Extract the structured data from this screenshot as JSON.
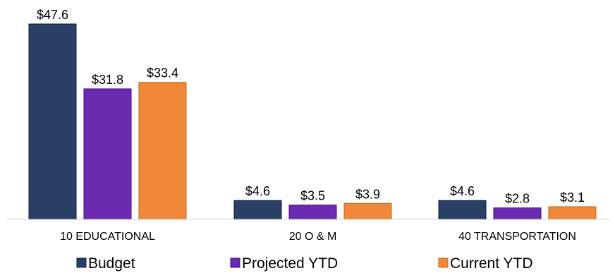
{
  "chart_data": {
    "type": "bar",
    "title": "",
    "xlabel": "",
    "ylabel": "",
    "ylim": [
      0,
      50
    ],
    "grid": false,
    "legend_position": "bottom",
    "value_prefix": "$",
    "categories": [
      "10 EDUCATIONAL",
      "20 O & M",
      "40 TRANSPORTATION"
    ],
    "series": [
      {
        "name": "Budget",
        "color": "#2a3f66",
        "values": [
          47.6,
          4.6,
          4.6
        ],
        "labels": [
          "$47.6",
          "$4.6",
          "$4.6"
        ]
      },
      {
        "name": "Projected YTD",
        "color": "#6b2bb0",
        "values": [
          31.8,
          3.5,
          2.8
        ],
        "labels": [
          "$31.8",
          "$3.5",
          "$2.8"
        ]
      },
      {
        "name": "Current YTD",
        "color": "#f0883a",
        "values": [
          33.4,
          3.9,
          3.1
        ],
        "labels": [
          "$33.4",
          "$3.9",
          "$3.1"
        ]
      }
    ]
  }
}
